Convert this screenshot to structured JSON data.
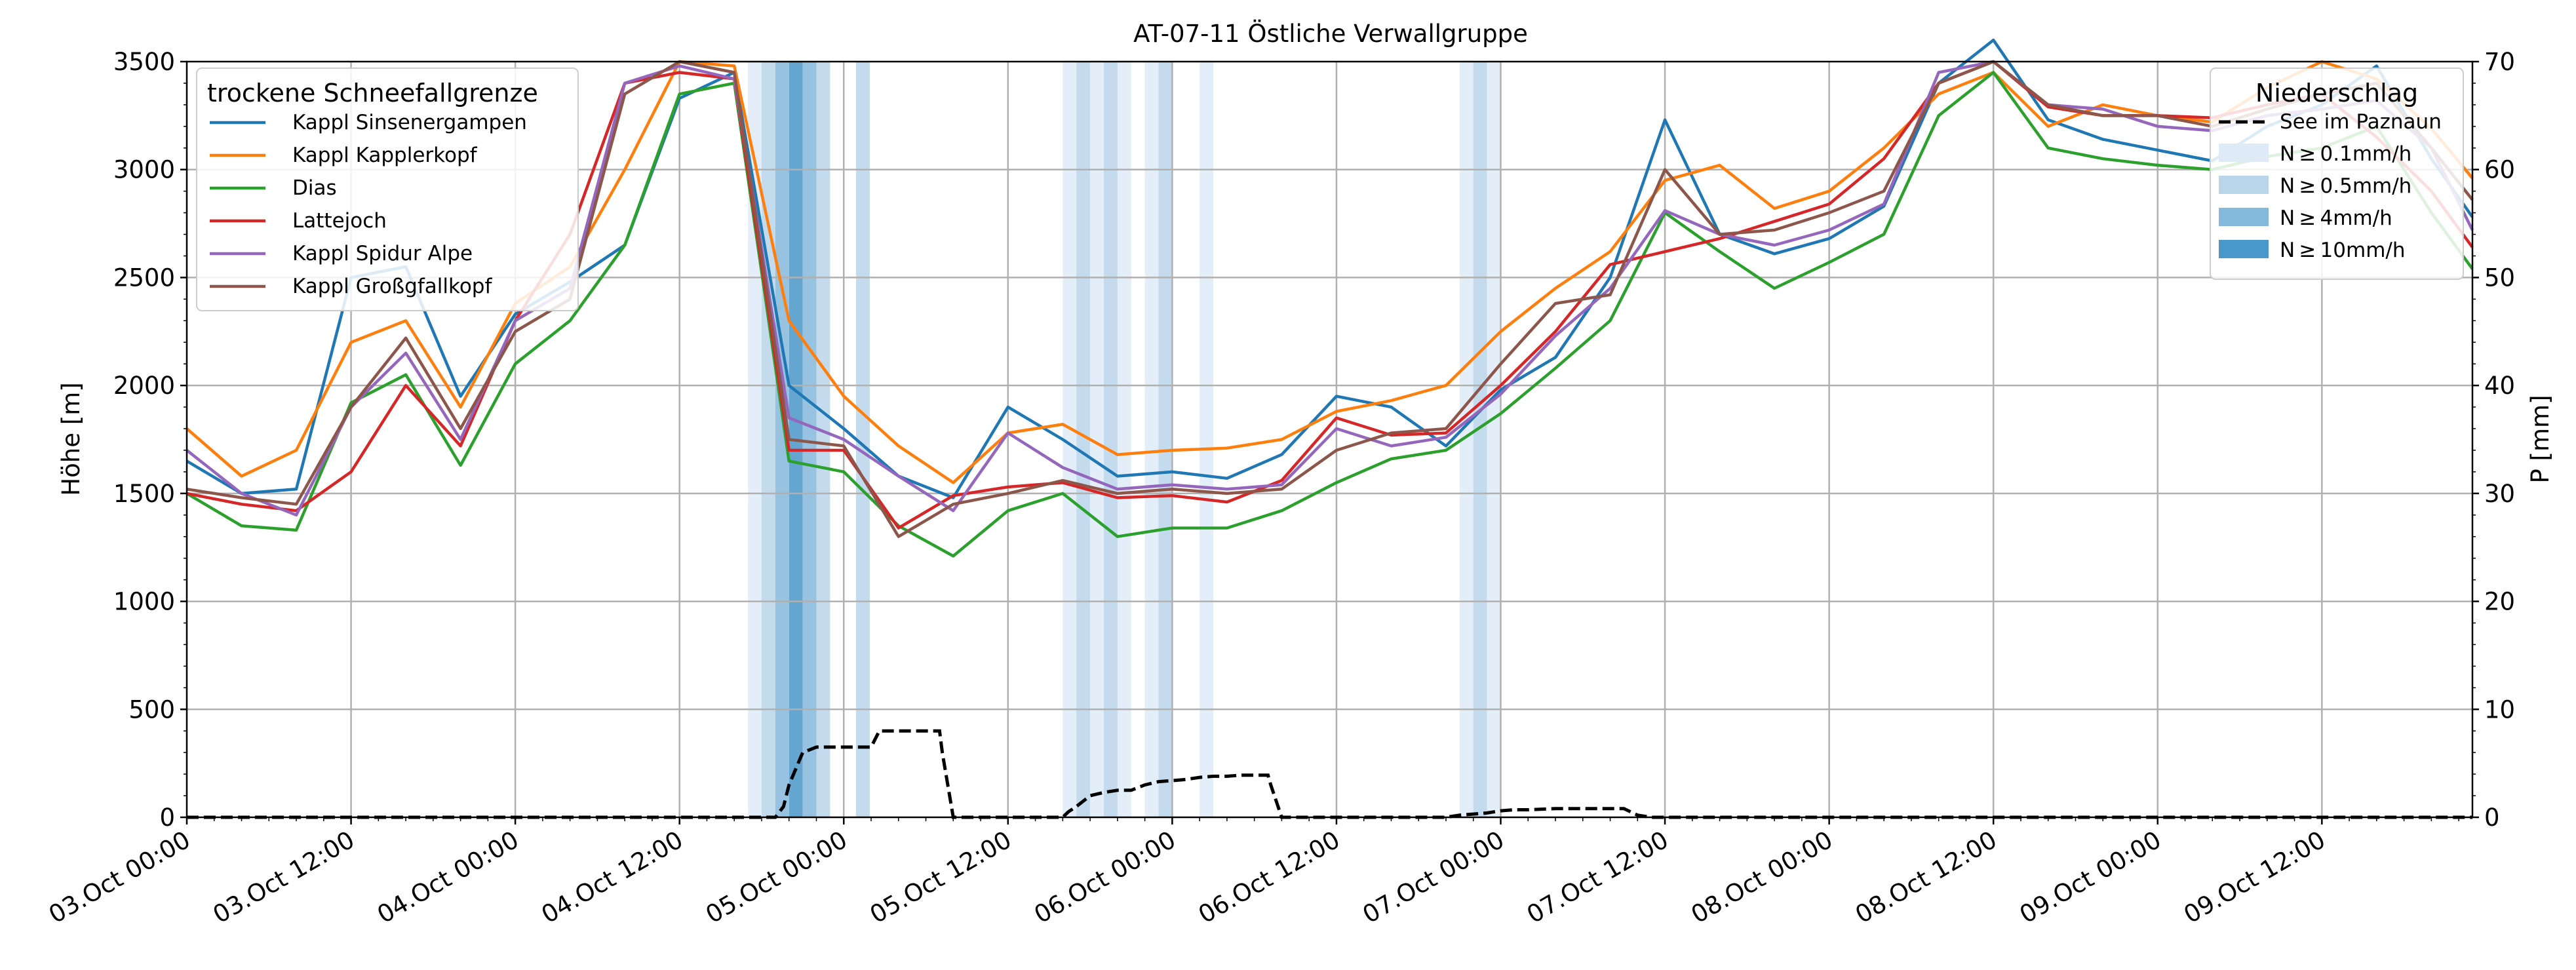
{
  "chart_data": {
    "type": "line",
    "title": "AT-07-11 Östliche Verwallgruppe",
    "ylabel": "Höhe [m]",
    "y2label": "P [mm]",
    "ylim": [
      0,
      3500
    ],
    "y2lim": [
      0,
      70
    ],
    "yticks": [
      "0",
      "500",
      "1000",
      "1500",
      "2000",
      "2500",
      "3000",
      "3500"
    ],
    "y2ticks": [
      "0",
      "10",
      "20",
      "30",
      "40",
      "50",
      "60",
      "70"
    ],
    "xlim": [
      0,
      167
    ],
    "xlabels": [
      {
        "h": 0,
        "label": "03.Oct 00:00"
      },
      {
        "h": 12,
        "label": "03.Oct 12:00"
      },
      {
        "h": 24,
        "label": "04.Oct 00:00"
      },
      {
        "h": 36,
        "label": "04.Oct 12:00"
      },
      {
        "h": 48,
        "label": "05.Oct 00:00"
      },
      {
        "h": 60,
        "label": "05.Oct 12:00"
      },
      {
        "h": 72,
        "label": "06.Oct 00:00"
      },
      {
        "h": 84,
        "label": "06.Oct 12:00"
      },
      {
        "h": 96,
        "label": "07.Oct 00:00"
      },
      {
        "h": 108,
        "label": "07.Oct 12:00"
      },
      {
        "h": 120,
        "label": "08.Oct 00:00"
      },
      {
        "h": 132,
        "label": "08.Oct 12:00"
      },
      {
        "h": 144,
        "label": "09.Oct 00:00"
      },
      {
        "h": 156,
        "label": "09.Oct 12:00"
      }
    ],
    "grid": true,
    "legend_left": {
      "title": "trockene Schneefallgrenze",
      "placement": "top-left"
    },
    "legend_right": {
      "title": "Niederschlag",
      "placement": "top-right",
      "line_label": "See im Paznaun",
      "patch_labels": [
        "N ≥ 0.1mm/h",
        "N ≥ 0.5mm/h",
        "N ≥ 4mm/h",
        "N ≥ 10mm/h"
      ],
      "patch_colors": [
        "#deebf7",
        "#b9d5ea",
        "#85b9dc",
        "#4a97c9"
      ]
    },
    "series": [
      {
        "name": "Kappl Sinsenergampen",
        "color": "#1f77b4",
        "x": [
          0,
          4,
          8,
          12,
          16,
          20,
          24,
          28,
          32,
          36,
          40,
          44,
          48,
          52,
          56,
          60,
          64,
          68,
          72,
          76,
          80,
          84,
          88,
          92,
          96,
          100,
          104,
          108,
          112,
          116,
          120,
          124,
          128,
          132,
          136,
          140,
          144,
          148,
          152,
          156,
          160,
          164,
          167
        ],
        "y": [
          1650,
          1500,
          1520,
          2500,
          2550,
          1950,
          2330,
          2480,
          2650,
          3330,
          3450,
          2000,
          1800,
          1580,
          1480,
          1900,
          1750,
          1580,
          1600,
          1570,
          1680,
          1950,
          1900,
          1720,
          1980,
          2130,
          2500,
          3230,
          2700,
          2610,
          2680,
          2830,
          3400,
          3600,
          3230,
          3140,
          3090,
          3040,
          3200,
          3300,
          3480,
          3050,
          2780
        ]
      },
      {
        "name": "Kappl Kapplerkopf",
        "color": "#ff7f0e",
        "x": [
          0,
          4,
          8,
          12,
          16,
          20,
          24,
          28,
          32,
          36,
          40,
          44,
          48,
          52,
          56,
          60,
          64,
          68,
          72,
          76,
          80,
          84,
          88,
          92,
          96,
          100,
          104,
          108,
          112,
          116,
          120,
          124,
          128,
          132,
          136,
          140,
          144,
          148,
          152,
          156,
          160,
          164,
          167
        ],
        "y": [
          1800,
          1580,
          1700,
          2200,
          2300,
          1900,
          2380,
          2550,
          3000,
          3500,
          3480,
          2300,
          1950,
          1720,
          1550,
          1780,
          1820,
          1680,
          1700,
          1710,
          1750,
          1880,
          1930,
          2000,
          2250,
          2450,
          2620,
          2950,
          3020,
          2820,
          2900,
          3100,
          3350,
          3450,
          3200,
          3300,
          3250,
          3220,
          3380,
          3500,
          3420,
          3190,
          2960
        ]
      },
      {
        "name": "Dias",
        "color": "#2ca02c",
        "x": [
          0,
          4,
          8,
          12,
          16,
          20,
          24,
          28,
          32,
          36,
          40,
          44,
          48,
          52,
          56,
          60,
          64,
          68,
          72,
          76,
          80,
          84,
          88,
          92,
          96,
          100,
          104,
          108,
          112,
          116,
          120,
          124,
          128,
          132,
          136,
          140,
          144,
          148,
          152,
          156,
          160,
          164,
          167
        ],
        "y": [
          1500,
          1350,
          1330,
          1920,
          2050,
          1630,
          2100,
          2300,
          2650,
          3350,
          3400,
          1650,
          1600,
          1350,
          1210,
          1420,
          1500,
          1300,
          1340,
          1340,
          1420,
          1550,
          1660,
          1700,
          1870,
          2080,
          2300,
          2800,
          2620,
          2450,
          2570,
          2700,
          3250,
          3450,
          3100,
          3050,
          3020,
          3000,
          3060,
          3100,
          3200,
          2800,
          2540
        ]
      },
      {
        "name": "Lattejoch",
        "color": "#d62728",
        "x": [
          0,
          4,
          8,
          12,
          16,
          20,
          24,
          28,
          32,
          36,
          40,
          44,
          48,
          52,
          56,
          60,
          64,
          68,
          72,
          76,
          80,
          84,
          88,
          92,
          96,
          100,
          104,
          108,
          112,
          116,
          120,
          124,
          128,
          132,
          136,
          140,
          144,
          148,
          152,
          156,
          160,
          164,
          167
        ],
        "y": [
          1500,
          1450,
          1420,
          1600,
          2000,
          1720,
          2300,
          2700,
          3400,
          3450,
          3420,
          1700,
          1700,
          1340,
          1490,
          1530,
          1550,
          1480,
          1490,
          1460,
          1560,
          1850,
          1770,
          1780,
          2000,
          2250,
          2560,
          2620,
          2680,
          2760,
          2840,
          3050,
          3400,
          3500,
          3290,
          3250,
          3250,
          3240,
          3300,
          3350,
          3150,
          2900,
          2640
        ]
      },
      {
        "name": "Kappl Spidur Alpe",
        "color": "#9467bd",
        "x": [
          0,
          4,
          8,
          12,
          16,
          20,
          24,
          28,
          32,
          36,
          40,
          44,
          48,
          52,
          56,
          60,
          64,
          68,
          72,
          76,
          80,
          84,
          88,
          92,
          96,
          100,
          104,
          108,
          112,
          116,
          120,
          124,
          128,
          132,
          136,
          140,
          144,
          148,
          152,
          156,
          160,
          164,
          167
        ],
        "y": [
          1700,
          1500,
          1400,
          1900,
          2150,
          1750,
          2300,
          2450,
          3400,
          3480,
          3420,
          1850,
          1750,
          1580,
          1420,
          1780,
          1620,
          1520,
          1540,
          1520,
          1540,
          1800,
          1720,
          1760,
          1960,
          2230,
          2450,
          2810,
          2700,
          2650,
          2720,
          2840,
          3450,
          3500,
          3300,
          3280,
          3200,
          3180,
          3250,
          3280,
          3320,
          3100,
          2720
        ]
      },
      {
        "name": "Kappl Großgfallkopf",
        "color": "#8c564b",
        "x": [
          0,
          4,
          8,
          12,
          16,
          20,
          24,
          28,
          32,
          36,
          40,
          44,
          48,
          52,
          56,
          60,
          64,
          68,
          72,
          76,
          80,
          84,
          88,
          92,
          96,
          100,
          104,
          108,
          112,
          116,
          120,
          124,
          128,
          132,
          136,
          140,
          144,
          148,
          152,
          156,
          160,
          164,
          167
        ],
        "y": [
          1520,
          1480,
          1450,
          1900,
          2220,
          1800,
          2250,
          2400,
          3350,
          3500,
          3450,
          1750,
          1720,
          1300,
          1450,
          1500,
          1560,
          1500,
          1520,
          1500,
          1520,
          1700,
          1780,
          1800,
          2100,
          2380,
          2420,
          3000,
          2700,
          2720,
          2800,
          2900,
          3400,
          3500,
          3300,
          3250,
          3250,
          3200,
          3280,
          3350,
          3400,
          3100,
          2860
        ]
      }
    ],
    "precip_line": {
      "name": "See im Paznaun",
      "color": "#000000",
      "x": [
        0,
        43,
        43.6,
        44,
        44.5,
        45,
        46,
        48,
        49,
        50,
        50.6,
        55,
        55.2,
        56,
        64,
        64.4,
        65,
        66,
        67,
        68,
        69,
        70,
        71,
        72,
        73,
        74,
        75,
        76,
        77,
        78,
        79,
        79.2,
        80,
        92,
        93,
        94,
        95,
        96,
        97,
        98,
        100,
        102,
        103,
        104,
        105,
        106,
        107,
        167
      ],
      "y": [
        0,
        0,
        1,
        3,
        4.5,
        6,
        6.5,
        6.5,
        6.5,
        6.5,
        8,
        8,
        6,
        0,
        0,
        0.5,
        1,
        2,
        2.3,
        2.5,
        2.5,
        3,
        3.3,
        3.4,
        3.5,
        3.7,
        3.8,
        3.8,
        3.9,
        3.9,
        3.9,
        3,
        0,
        0,
        0.2,
        0.3,
        0.4,
        0.6,
        0.7,
        0.7,
        0.8,
        0.8,
        0.8,
        0.8,
        0.8,
        0.2,
        0,
        0
      ]
    },
    "precip_bands": [
      {
        "start": 41,
        "end": 42,
        "level": 1
      },
      {
        "start": 42,
        "end": 43,
        "level": 2
      },
      {
        "start": 43,
        "end": 44,
        "level": 3
      },
      {
        "start": 44,
        "end": 45,
        "level": 4
      },
      {
        "start": 45,
        "end": 46,
        "level": 3
      },
      {
        "start": 46,
        "end": 47,
        "level": 2
      },
      {
        "start": 48.9,
        "end": 49.9,
        "level": 2
      },
      {
        "start": 64,
        "end": 65,
        "level": 1
      },
      {
        "start": 65,
        "end": 66,
        "level": 2
      },
      {
        "start": 66,
        "end": 67,
        "level": 1
      },
      {
        "start": 67,
        "end": 68,
        "level": 2
      },
      {
        "start": 68,
        "end": 69,
        "level": 1
      },
      {
        "start": 70,
        "end": 71,
        "level": 1
      },
      {
        "start": 71,
        "end": 72,
        "level": 2
      },
      {
        "start": 74,
        "end": 75,
        "level": 1
      },
      {
        "start": 93,
        "end": 94,
        "level": 1
      },
      {
        "start": 94,
        "end": 95,
        "level": 2
      },
      {
        "start": 95,
        "end": 96,
        "level": 1
      }
    ]
  }
}
